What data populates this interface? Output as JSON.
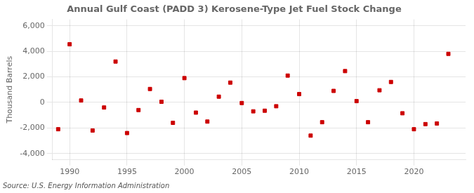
{
  "chart_data": {
    "type": "scatter",
    "title": "Annual Gulf Coast (PADD 3) Kerosene-Type Jet Fuel Stock Change",
    "ylabel": "Thousand Barrels",
    "annotation": "Source: U.S. Energy Information Administration",
    "x": [
      1989,
      1990,
      1991,
      1992,
      1993,
      1994,
      1995,
      1996,
      1997,
      1998,
      1999,
      2000,
      2001,
      2002,
      2003,
      2004,
      2005,
      2006,
      2007,
      2008,
      2009,
      2010,
      2011,
      2012,
      2013,
      2014,
      2015,
      2016,
      2017,
      2018,
      2019,
      2020,
      2021,
      2022,
      2023
    ],
    "values": [
      -2100,
      4550,
      150,
      -2200,
      -400,
      3200,
      -2400,
      -600,
      1050,
      50,
      -1600,
      1900,
      -800,
      -1500,
      450,
      1550,
      -50,
      -700,
      -650,
      -300,
      2100,
      650,
      -2600,
      -1550,
      900,
      2450,
      100,
      -1550,
      950,
      1600,
      -850,
      -2100,
      -1700,
      -1650,
      3800
    ],
    "color": "#cc0000",
    "marker": "square",
    "xlim": [
      1988.5,
      2024.5
    ],
    "ylim": [
      -4500,
      6500
    ],
    "xticks": [
      1990,
      1995,
      2000,
      2005,
      2010,
      2015,
      2020
    ],
    "yticks": [
      {
        "value": -4000,
        "label": "-4,000"
      },
      {
        "value": -2000,
        "label": "-2,000"
      },
      0,
      {
        "value": 2000,
        "label": "2,000"
      },
      {
        "value": 4000,
        "label": "4,000"
      },
      {
        "value": 6000,
        "label": "6,000"
      }
    ],
    "grid": true
  }
}
